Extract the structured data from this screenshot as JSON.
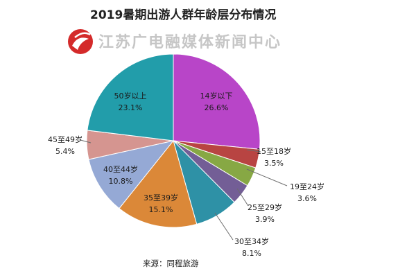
{
  "watermark": {
    "text": "江苏广电融媒体新闻中心"
  },
  "colors": {
    "leader": "#6d6d6d",
    "slice_stroke": "#ffffff",
    "logo": "#d42a2a"
  },
  "chart_data": {
    "type": "pie",
    "title": "2019暑期出游人群年龄层分布情况",
    "source": "来源：同程旅游",
    "start_angle_deg": 0,
    "direction": "clockwise",
    "slices": [
      {
        "label": "14岁以下",
        "value": 26.6,
        "value_text": "26.6%",
        "color": "#b845c8"
      },
      {
        "label": "15至18岁",
        "value": 3.5,
        "value_text": "3.5%",
        "color": "#b84442"
      },
      {
        "label": "19至24岁",
        "value": 3.6,
        "value_text": "3.6%",
        "color": "#87a844"
      },
      {
        "label": "25至29岁",
        "value": 3.9,
        "value_text": "3.9%",
        "color": "#735e96"
      },
      {
        "label": "30至34岁",
        "value": 8.1,
        "value_text": "8.1%",
        "color": "#2e91a6"
      },
      {
        "label": "35至39岁",
        "value": 15.1,
        "value_text": "15.1%",
        "color": "#db8838"
      },
      {
        "label": "40至44岁",
        "value": 10.8,
        "value_text": "10.8%",
        "color": "#95a9d5"
      },
      {
        "label": "45至49岁",
        "value": 5.4,
        "value_text": "5.4%",
        "color": "#d59590"
      },
      {
        "label": "50岁以上",
        "value": 23.1,
        "value_text": "23.1%",
        "color": "#229daa"
      }
    ]
  }
}
